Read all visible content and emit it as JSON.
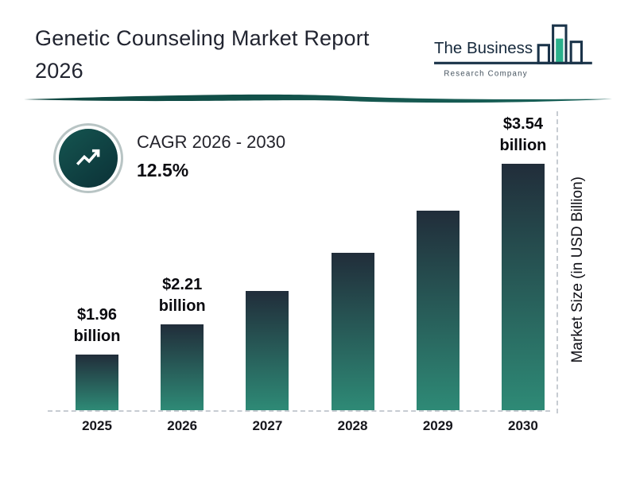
{
  "header": {
    "title": "Genetic Counseling Market Report 2026",
    "logo": {
      "line1": "The Business",
      "line2": "Research Company",
      "icon": "bar-chart-icon"
    }
  },
  "cagr": {
    "icon": "trending-up-icon",
    "label": "CAGR 2026 - 2030",
    "value": "12.5%"
  },
  "chart_data": {
    "type": "bar",
    "categories": [
      "2025",
      "2026",
      "2027",
      "2028",
      "2029",
      "2030"
    ],
    "values": [
      1.96,
      2.21,
      2.49,
      2.8,
      3.15,
      3.54
    ],
    "bar_labels": [
      {
        "amount": "$1.96",
        "unit": "billion"
      },
      {
        "amount": "$2.21",
        "unit": "billion"
      },
      null,
      null,
      null,
      {
        "amount": "$3.54",
        "unit": "billion"
      }
    ],
    "xlabel": "",
    "ylabel": "Market Size (in USD Billion)",
    "ylim": [
      1.5,
      3.54
    ],
    "legend": false,
    "grid": false,
    "colors": {
      "bar_gradient_top": "#212d3a",
      "bar_gradient_bottom": "#2e8a76",
      "divider_teal_dark": "#0d453f",
      "divider_teal_light": "#1a635a",
      "dashed_line": "#c7ccd2",
      "logo_teal": "#2bb18c",
      "logo_navy": "#1a3349"
    }
  }
}
